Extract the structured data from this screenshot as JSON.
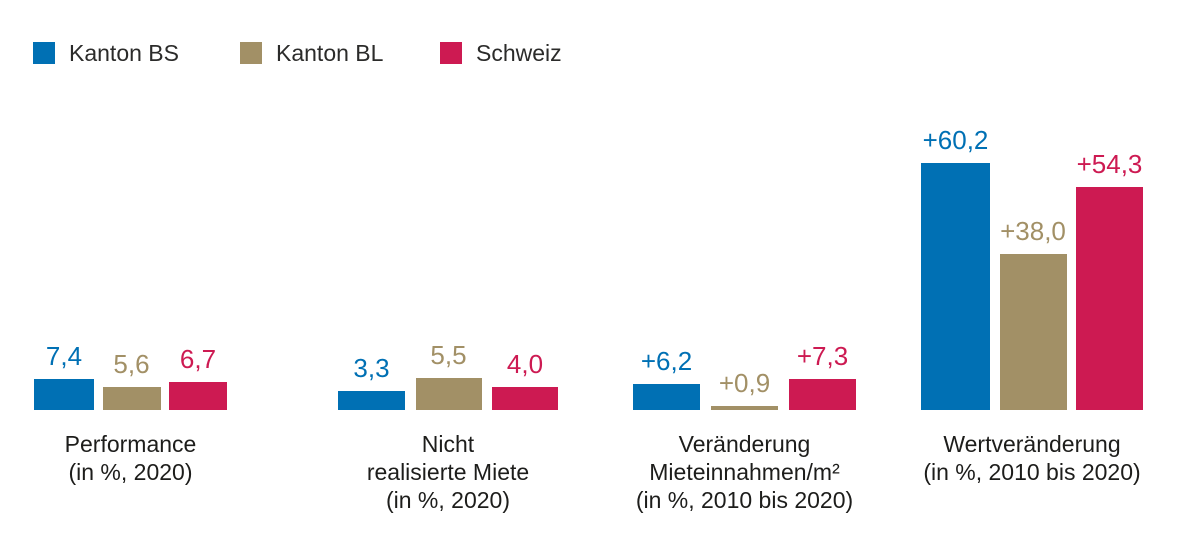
{
  "legend": [
    {
      "label": "Kanton BS",
      "color": "#0070b4"
    },
    {
      "label": "Kanton BL",
      "color": "#a29066"
    },
    {
      "label": "Schweiz",
      "color": "#cd1a52"
    }
  ],
  "chart_data": {
    "type": "bar",
    "categories": [
      "Performance (in %, 2020)",
      "Nicht realisierte Miete (in %, 2020)",
      "Veränderung Mieteinnahmen/m² (in %, 2010 bis 2020)",
      "Wertveränderung (in %, 2010 bis 2020)"
    ],
    "series": [
      {
        "name": "Kanton BS",
        "color": "#0070b4",
        "values": [
          7.4,
          3.3,
          6.2,
          60.2
        ]
      },
      {
        "name": "Kanton BL",
        "color": "#a29066",
        "values": [
          5.6,
          5.5,
          0.9,
          38.0
        ]
      },
      {
        "name": "Schweiz",
        "color": "#cd1a52",
        "values": [
          6.7,
          4.0,
          7.3,
          54.3
        ]
      }
    ],
    "value_label_format": "comma-decimal, '+' prefix for change metrics",
    "axes": "none (no gridlines, no y-axis; values printed above bars)",
    "legend_position": "top-left"
  },
  "groups": [
    {
      "labels": [
        "7,4",
        "5,6",
        "6,7"
      ],
      "category_lines": [
        "Performance",
        "(in %, 2020)"
      ]
    },
    {
      "labels": [
        "3,3",
        "5,5",
        "4,0"
      ],
      "category_lines": [
        "Nicht",
        "realisierte Miete",
        "(in %, 2020)"
      ]
    },
    {
      "labels": [
        "+6,2",
        "+0,9",
        "+7,3"
      ],
      "category_lines": [
        "Veränderung",
        "Mieteinnahmen/m²",
        "(in %, 2010 bis 2020)"
      ]
    },
    {
      "labels": [
        "+60,2",
        "+38,0",
        "+54,3"
      ],
      "category_lines": [
        "Wertveränderung",
        "(in %, 2010 bis 2020)"
      ]
    }
  ]
}
